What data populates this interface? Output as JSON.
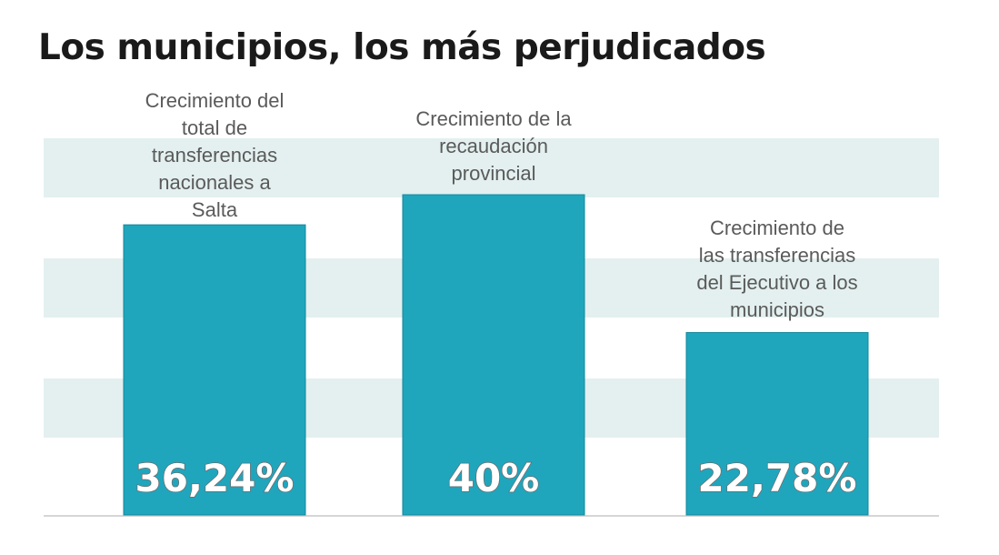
{
  "colors": {
    "bar": "#1fa6bd",
    "bar_edge": "#13889c",
    "band": "#e3f0ef",
    "value_text": "#ffffff",
    "value_outline": "#6b6b6b",
    "label_text": "#5a5a5a",
    "title_text": "#1a1a1a",
    "baseline": "#d6d6d6"
  },
  "chart_data": {
    "type": "bar",
    "title": "Los municipios, los más perjudicados",
    "xlabel": "",
    "ylabel": "",
    "ylim": [
      0,
      50
    ],
    "grid": false,
    "legend": "none",
    "categories": [
      "Crecimiento del total de transferencias nacionales a Salta",
      "Crecimiento de la recaudación provincial",
      "Crecimiento de las transferencias del Ejecutivo a los municipios"
    ],
    "category_lines": [
      [
        "Crecimiento del",
        "total de",
        "transferencias",
        "nacionales a",
        "Salta"
      ],
      [
        "Crecimiento de la",
        "recaudación",
        "provincial"
      ],
      [
        "Crecimiento de",
        "las transferencias",
        "del Ejecutivo a los",
        "municipios"
      ]
    ],
    "values": [
      36.24,
      40,
      22.78
    ],
    "value_labels": [
      "36,24%",
      "40%",
      "22,78%"
    ]
  }
}
